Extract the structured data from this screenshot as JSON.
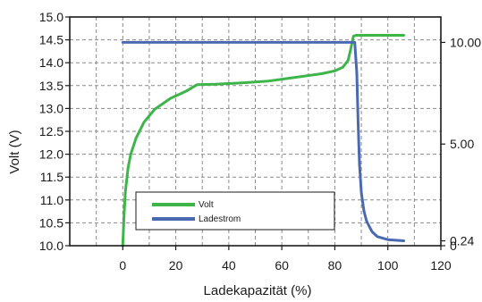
{
  "chart_data": {
    "type": "line",
    "title": "",
    "xlabel": "Ladekapazität (%)",
    "ylabel": "Volt (V)",
    "x_ticks": [
      "0",
      "20",
      "40",
      "60",
      "80",
      "100",
      "120"
    ],
    "y_ticks_left": [
      "10.0",
      "10.5",
      "11.0",
      "11.5",
      "12.0",
      "12.5",
      "13.0",
      "13.5",
      "14.0",
      "14.5",
      "15.0"
    ],
    "y_ticks_right": [
      "0",
      "0.24",
      "5.00",
      "10.00"
    ],
    "xlim": [
      -20,
      120
    ],
    "ylim": [
      10.0,
      15.0
    ],
    "ylim_right": [
      0,
      11.25
    ],
    "grid": true,
    "legend_position": "bottom-left",
    "series": [
      {
        "name": "Volt",
        "color": "#3db54a",
        "axis": "left",
        "x": [
          0,
          0.5,
          1,
          2,
          3,
          5,
          8,
          12,
          18,
          24,
          28,
          35,
          45,
          55,
          65,
          75,
          80,
          83,
          85,
          86,
          87,
          88,
          90,
          95,
          100,
          106
        ],
        "y": [
          10.0,
          10.7,
          11.2,
          11.7,
          12.0,
          12.35,
          12.7,
          12.98,
          13.22,
          13.38,
          13.52,
          13.53,
          13.56,
          13.6,
          13.68,
          13.76,
          13.82,
          13.9,
          14.05,
          14.3,
          14.58,
          14.6,
          14.6,
          14.6,
          14.6,
          14.6
        ]
      },
      {
        "name": "Ladestrom",
        "color": "#4a69b0",
        "axis": "right",
        "x": [
          0,
          20,
          40,
          60,
          80,
          86,
          87.5,
          88.3,
          88.8,
          89.3,
          90,
          91,
          92,
          94,
          96,
          100,
          106
        ],
        "y": [
          10.0,
          10.0,
          10.0,
          10.0,
          10.0,
          10.0,
          10.0,
          8.5,
          6.0,
          4.0,
          2.6,
          1.7,
          1.2,
          0.7,
          0.45,
          0.3,
          0.24
        ]
      }
    ]
  }
}
